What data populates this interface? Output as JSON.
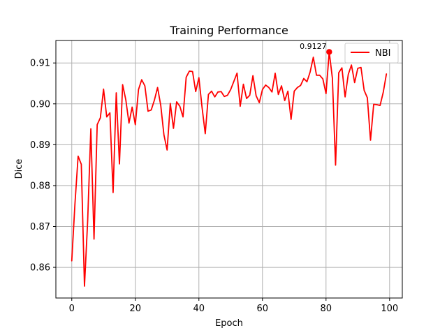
{
  "chart_data": {
    "type": "line",
    "title": "Training Performance",
    "xlabel": "Epoch",
    "ylabel": "Dice",
    "xlim": [
      -5,
      104
    ],
    "ylim": [
      0.8525,
      0.9155
    ],
    "xticks": [
      0,
      20,
      40,
      60,
      80,
      100
    ],
    "yticks": [
      0.86,
      0.87,
      0.88,
      0.89,
      0.9,
      0.91
    ],
    "xtick_labels": [
      "0",
      "20",
      "40",
      "60",
      "80",
      "100"
    ],
    "ytick_labels": [
      "0.86",
      "0.87",
      "0.88",
      "0.89",
      "0.90",
      "0.91"
    ],
    "grid": true,
    "legend": {
      "position": "top-right"
    },
    "series": [
      {
        "name": "NBI",
        "color": "#ff0000",
        "x": [
          0,
          1,
          2,
          3,
          4,
          5,
          6,
          7,
          8,
          9,
          10,
          11,
          12,
          13,
          14,
          15,
          16,
          17,
          18,
          19,
          20,
          21,
          22,
          23,
          24,
          25,
          26,
          27,
          28,
          29,
          30,
          31,
          32,
          33,
          34,
          35,
          36,
          37,
          38,
          39,
          40,
          41,
          42,
          43,
          44,
          45,
          46,
          47,
          48,
          49,
          50,
          51,
          52,
          53,
          54,
          55,
          56,
          57,
          58,
          59,
          60,
          61,
          62,
          63,
          64,
          65,
          66,
          67,
          68,
          69,
          70,
          71,
          72,
          73,
          74,
          75,
          76,
          77,
          78,
          79,
          80,
          81,
          82,
          83,
          84,
          85,
          86,
          87,
          88,
          89,
          90,
          91,
          92,
          93,
          94,
          95,
          96,
          97,
          98,
          99
        ],
        "y": [
          0.8616,
          0.8755,
          0.8872,
          0.8852,
          0.8554,
          0.8713,
          0.8939,
          0.8669,
          0.8949,
          0.8966,
          0.9036,
          0.8968,
          0.8978,
          0.8783,
          0.9027,
          0.8853,
          0.9047,
          0.901,
          0.8953,
          0.8992,
          0.8949,
          0.9035,
          0.9059,
          0.9044,
          0.8982,
          0.8985,
          0.9009,
          0.904,
          0.8996,
          0.8924,
          0.8887,
          0.9001,
          0.894,
          0.9005,
          0.8994,
          0.8968,
          0.9065,
          0.908,
          0.9079,
          0.903,
          0.9064,
          0.8991,
          0.8927,
          0.9023,
          0.9031,
          0.9017,
          0.9029,
          0.903,
          0.9018,
          0.9021,
          0.9035,
          0.9055,
          0.9075,
          0.8994,
          0.9048,
          0.9013,
          0.9021,
          0.9069,
          0.902,
          0.9003,
          0.9035,
          0.9046,
          0.904,
          0.9029,
          0.9075,
          0.9023,
          0.9044,
          0.9008,
          0.9031,
          0.8962,
          0.9031,
          0.904,
          0.9045,
          0.9062,
          0.9054,
          0.9078,
          0.9114,
          0.907,
          0.907,
          0.9061,
          0.9025,
          0.9127,
          0.9063,
          0.885,
          0.9076,
          0.9088,
          0.9017,
          0.9072,
          0.9095,
          0.9052,
          0.9087,
          0.9089,
          0.9033,
          0.9015,
          0.8911,
          0.8999,
          0.8998,
          0.8996,
          0.9028,
          0.9073
        ]
      }
    ],
    "annotations": [
      {
        "text": "0.9127",
        "x": 81,
        "y": 0.9127,
        "color": "#ff0000"
      }
    ]
  }
}
